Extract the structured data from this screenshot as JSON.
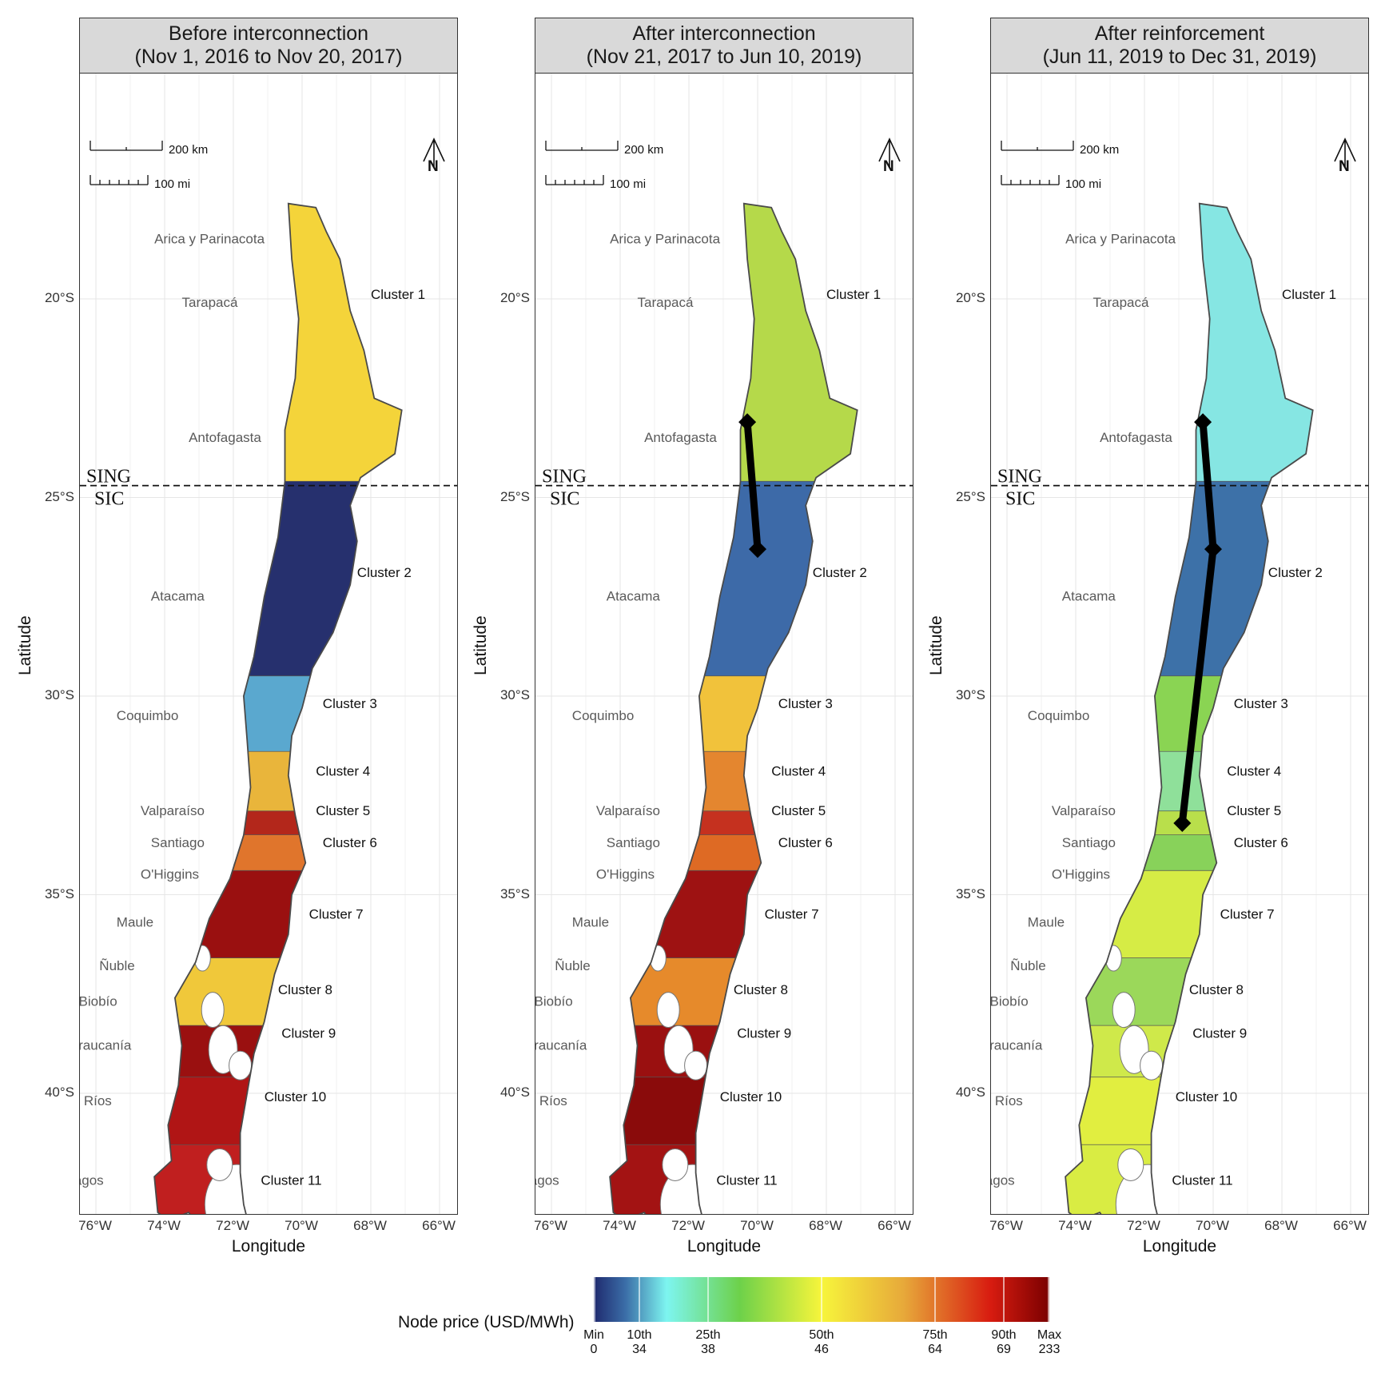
{
  "panels": [
    {
      "title_line1": "Before interconnection",
      "title_line2": "(Nov 1, 2016 to Nov 20, 2017)",
      "period": "before"
    },
    {
      "title_line1": "After interconnection",
      "title_line2": "(Nov 21, 2017 to Jun 10, 2019)",
      "period": "after"
    },
    {
      "title_line1": "After reinforcement",
      "title_line2": "(Jun 11, 2019 to Dec 31, 2019)",
      "period": "reinforced"
    }
  ],
  "axes": {
    "xlabel": "Longitude",
    "ylabel": "Latitude",
    "x_ticks": [
      "76°W",
      "74°W",
      "72°W",
      "70°W",
      "68°W",
      "66°W"
    ],
    "y_ticks": [
      "20°S",
      "25°S",
      "30°S",
      "35°S",
      "40°S"
    ]
  },
  "scalebar": {
    "km_label": "200 km",
    "mi_label": "100 mi"
  },
  "north_arrow": {
    "label": "N",
    "icon": "north-arrow-icon"
  },
  "divider": {
    "upper_label": "SING",
    "lower_label": "SIC"
  },
  "regions": [
    "Arica y Parinacota",
    "Tarapacá",
    "Antofagasta",
    "Atacama",
    "Coquimbo",
    "Valparaíso",
    "Santiago",
    "O'Higgins",
    "Maule",
    "Ñuble",
    "Biobío",
    "La Araucanía",
    "Los Ríos",
    "Los Lagos"
  ],
  "clusters": [
    "Cluster 1",
    "Cluster 2",
    "Cluster 3",
    "Cluster 4",
    "Cluster 5",
    "Cluster 6",
    "Cluster 7",
    "Cluster 8",
    "Cluster 9",
    "Cluster 10",
    "Cluster 11"
  ],
  "legend": {
    "title": "Node price (USD/MWh)",
    "stops": [
      {
        "name": "Min",
        "value": "0"
      },
      {
        "name": "10th",
        "value": "34"
      },
      {
        "name": "25th",
        "value": "38"
      },
      {
        "name": "50th",
        "value": "46"
      },
      {
        "name": "75th",
        "value": "64"
      },
      {
        "name": "90th",
        "value": "69"
      },
      {
        "name": "Max",
        "value": "233"
      }
    ],
    "colors": [
      "#1f2a6e",
      "#3b6ea8",
      "#7df5f0",
      "#6dd14a",
      "#f7f53b",
      "#e7a93a",
      "#d81c10",
      "#7a0000"
    ]
  },
  "cluster_colors": {
    "before": [
      "#f4d43a",
      "#26306e",
      "#5aa8cf",
      "#e9b53b",
      "#b3271b",
      "#e0752c",
      "#9a1010",
      "#f0c83a",
      "#9a1010",
      "#b01515",
      "#c01f1f"
    ],
    "after": [
      "#b5d94a",
      "#3d6aa8",
      "#f1c23b",
      "#e4862f",
      "#c5311f",
      "#de6a24",
      "#9e1212",
      "#e68a2b",
      "#9a1010",
      "#8a0b0b",
      "#a31313"
    ],
    "reinforced": [
      "#86e6e3",
      "#3d71a8",
      "#8ad453",
      "#8fe09a",
      "#b9df4b",
      "#88d25a",
      "#d6ec45",
      "#9bd85a",
      "#cfe94a",
      "#e1ee40",
      "#d9ec43"
    ]
  }
}
